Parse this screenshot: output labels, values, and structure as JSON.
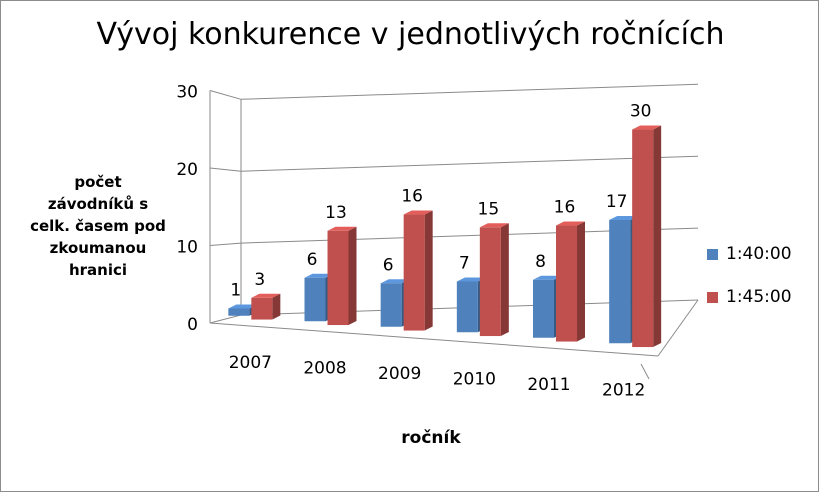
{
  "chart_data": {
    "type": "bar",
    "title": "Vývoj konkurence v jednotlivých ročnících",
    "xlabel": "ročník",
    "ylabel": "počet závodníků s celk. časem pod zkoumanou hranici",
    "ylabel_lines": [
      "počet",
      "závodníků s",
      "celk. časem pod",
      "zkoumanou",
      "hranici"
    ],
    "categories": [
      "2007",
      "2008",
      "2009",
      "2010",
      "2011",
      "2012"
    ],
    "series": [
      {
        "name": "1:40:00",
        "color": "#4f81bd",
        "values": [
          1,
          6,
          6,
          7,
          8,
          17
        ]
      },
      {
        "name": "1:45:00",
        "color": "#c0504d",
        "values": [
          3,
          13,
          16,
          15,
          16,
          30
        ]
      }
    ],
    "yticks": [
      0,
      10,
      20,
      30
    ],
    "ylim": [
      0,
      30
    ],
    "grid": true,
    "legend_position": "right",
    "three_d": true
  }
}
